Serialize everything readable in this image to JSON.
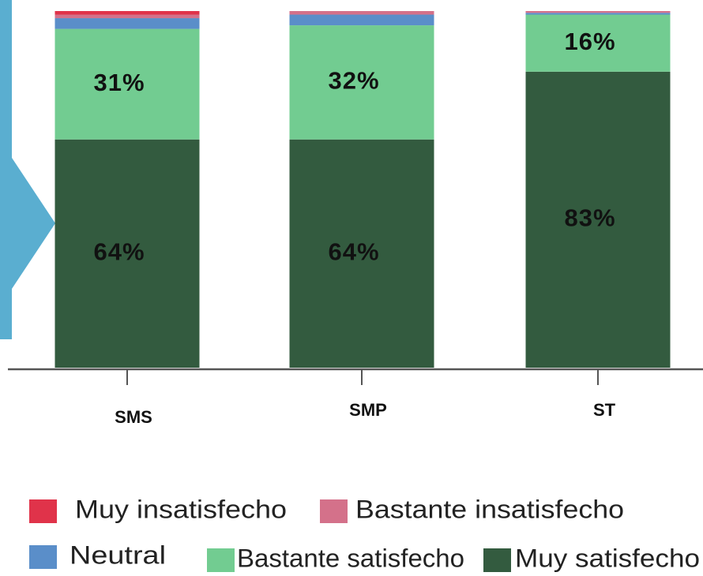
{
  "chart_data": {
    "type": "stacked_bar",
    "categories": [
      "SMS",
      "SMP",
      "ST"
    ],
    "ylim": [
      0,
      100
    ],
    "series": [
      {
        "name": "Muy satisfecho",
        "color": "#335b3f",
        "values": [
          64,
          64,
          83
        ],
        "value_labels": [
          "64%",
          "64%",
          "83%"
        ]
      },
      {
        "name": "Bastante satisfecho",
        "color": "#72cc91",
        "values": [
          31,
          32,
          16
        ],
        "value_labels": [
          "31%",
          "32%",
          "16%"
        ]
      },
      {
        "name": "Neutral",
        "color": "#5a8ec9",
        "values": [
          3,
          3,
          0.5
        ]
      },
      {
        "name": "Bastante insatisfecho",
        "color": "#d4718a",
        "values": [
          1,
          1,
          0.5
        ]
      },
      {
        "name": "Muy insatisfecho",
        "color": "#e0334a",
        "values": [
          1,
          0,
          0
        ]
      }
    ]
  }
}
